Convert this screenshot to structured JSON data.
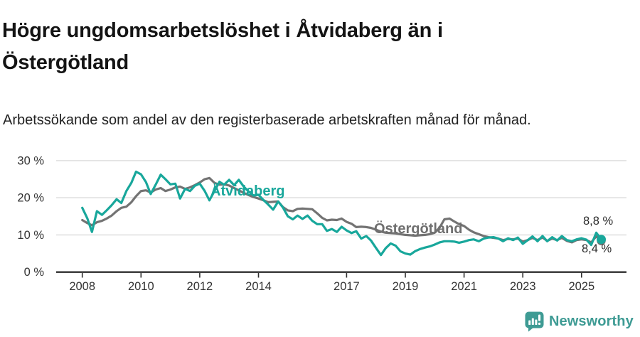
{
  "header": {
    "title": "Högre ungdomsarbetslöshet i Åtvidaberg än i Östergötland",
    "subtitle": "Arbetssökande som andel av den registerbaserade arbetskraften månad för månad."
  },
  "chart_data": {
    "type": "line",
    "title": "Högre ungdomsarbetslöshet i Åtvidaberg än i Östergötland",
    "subtitle": "Arbetssökande som andel av den registerbaserade arbetskraften månad för månad.",
    "grid": "horizontal",
    "ylim": [
      0,
      32
    ],
    "yticks": [
      0,
      10,
      20,
      30
    ],
    "ytick_labels": [
      "0 %",
      "10 %",
      "20 %",
      "30 %"
    ],
    "xticks": [
      2008,
      2010,
      2012,
      2014,
      2017,
      2019,
      2021,
      2023,
      2025
    ],
    "xtick_labels": [
      "2008",
      "2010",
      "2012",
      "2014",
      "2017",
      "2019",
      "2021",
      "2023",
      "2025"
    ],
    "x_unit": "decimal year (monthly data, sampled bimonthly)",
    "x": [
      2008,
      2008.17,
      2008.33,
      2008.5,
      2008.67,
      2008.83,
      2009,
      2009.17,
      2009.33,
      2009.5,
      2009.67,
      2009.83,
      2010,
      2010.17,
      2010.33,
      2010.5,
      2010.67,
      2010.83,
      2011,
      2011.17,
      2011.33,
      2011.5,
      2011.67,
      2011.83,
      2012,
      2012.17,
      2012.33,
      2012.5,
      2012.67,
      2012.83,
      2013,
      2013.17,
      2013.33,
      2013.5,
      2013.67,
      2013.83,
      2014,
      2014.17,
      2014.33,
      2014.5,
      2014.67,
      2014.83,
      2015,
      2015.17,
      2015.33,
      2015.5,
      2015.67,
      2015.83,
      2016,
      2016.17,
      2016.33,
      2016.5,
      2016.67,
      2016.83,
      2017,
      2017.17,
      2017.33,
      2017.5,
      2017.67,
      2017.83,
      2018,
      2018.17,
      2018.33,
      2018.5,
      2018.67,
      2018.83,
      2019,
      2019.17,
      2019.33,
      2019.5,
      2019.67,
      2019.83,
      2020,
      2020.17,
      2020.33,
      2020.5,
      2020.67,
      2020.83,
      2021,
      2021.17,
      2021.33,
      2021.5,
      2021.67,
      2021.83,
      2022,
      2022.17,
      2022.33,
      2022.5,
      2022.67,
      2022.83,
      2023,
      2023.17,
      2023.33,
      2023.5,
      2023.67,
      2023.83,
      2024,
      2024.17,
      2024.33,
      2024.5,
      2024.67,
      2024.83,
      2025,
      2025.17,
      2025.33,
      2025.5,
      2025.67
    ],
    "series": [
      {
        "name": "Åtvidaberg",
        "color": "#18a79b",
        "values": [
          17.3,
          14.5,
          10.8,
          16.4,
          15.4,
          16.6,
          18.0,
          19.6,
          18.6,
          21.8,
          24.0,
          27.0,
          26.3,
          24.2,
          21.0,
          23.5,
          26.2,
          25.0,
          23.6,
          23.8,
          19.8,
          22.4,
          21.8,
          23.2,
          23.8,
          21.8,
          19.3,
          21.8,
          24.3,
          23.5,
          24.8,
          23.4,
          24.8,
          23.0,
          21.6,
          20.6,
          20.8,
          19.4,
          18.2,
          16.8,
          19.0,
          17.4,
          15.0,
          14.2,
          15.2,
          14.3,
          15.2,
          13.8,
          12.9,
          12.9,
          11.1,
          11.6,
          10.8,
          12.2,
          11.2,
          10.5,
          11.0,
          9.0,
          9.7,
          8.5,
          6.5,
          4.6,
          6.4,
          7.7,
          7.1,
          5.6,
          5.0,
          4.7,
          5.6,
          6.2,
          6.6,
          6.9,
          7.4,
          8.0,
          8.3,
          8.3,
          8.2,
          7.9,
          8.2,
          8.6,
          8.8,
          8.3,
          9.0,
          9.3,
          9.4,
          9.0,
          8.3,
          9.1,
          8.6,
          9.3,
          7.6,
          8.6,
          9.6,
          8.3,
          9.7,
          8.3,
          9.4,
          8.5,
          9.7,
          8.6,
          8.3,
          8.8,
          9.1,
          8.7,
          7.3,
          10.6,
          8.8
        ]
      },
      {
        "name": "Östergötland",
        "color": "#737373",
        "values": [
          14.0,
          13.2,
          12.6,
          13.4,
          13.8,
          14.4,
          15.2,
          16.4,
          17.3,
          17.6,
          18.8,
          20.4,
          21.8,
          22.0,
          21.4,
          22.2,
          22.6,
          21.8,
          22.2,
          22.8,
          23.0,
          22.4,
          22.8,
          23.4,
          24.1,
          25.0,
          25.3,
          24.0,
          23.5,
          23.6,
          23.3,
          22.6,
          22.0,
          21.3,
          20.7,
          20.2,
          19.8,
          19.3,
          18.8,
          18.9,
          19.0,
          17.5,
          16.6,
          16.4,
          17.0,
          17.1,
          17.0,
          16.9,
          15.8,
          14.6,
          13.9,
          14.1,
          14.0,
          14.4,
          13.5,
          13.0,
          12.1,
          12.2,
          12.1,
          11.9,
          11.4,
          10.9,
          10.6,
          10.5,
          10.4,
          10.2,
          10.0,
          9.9,
          9.8,
          9.9,
          10.0,
          10.2,
          10.6,
          12.0,
          14.2,
          14.4,
          13.6,
          12.9,
          12.4,
          11.4,
          10.7,
          10.2,
          9.7,
          9.4,
          9.2,
          9.0,
          8.6,
          8.9,
          8.8,
          9.0,
          8.2,
          8.6,
          9.2,
          8.6,
          9.3,
          8.4,
          9.0,
          8.6,
          9.2,
          8.4,
          8.0,
          8.6,
          8.8,
          8.6,
          8.0,
          9.6,
          8.4
        ]
      }
    ],
    "end_labels": {
      "atvidaberg": "8,8 %",
      "ostergotland": "8,4 %"
    },
    "final_values": {
      "atvidaberg": 8.8,
      "ostergotland": 8.4
    }
  },
  "footer": {
    "brand": "Newsworthy"
  },
  "colors": {
    "accent_teal": "#18a79b",
    "series_gray": "#737373",
    "label_gray": "#6f6f6f",
    "logo_teal": "#3e9b94",
    "axis_text": "#333333",
    "gridline": "#dbdbdb",
    "axis_line": "#2f2f2f"
  }
}
